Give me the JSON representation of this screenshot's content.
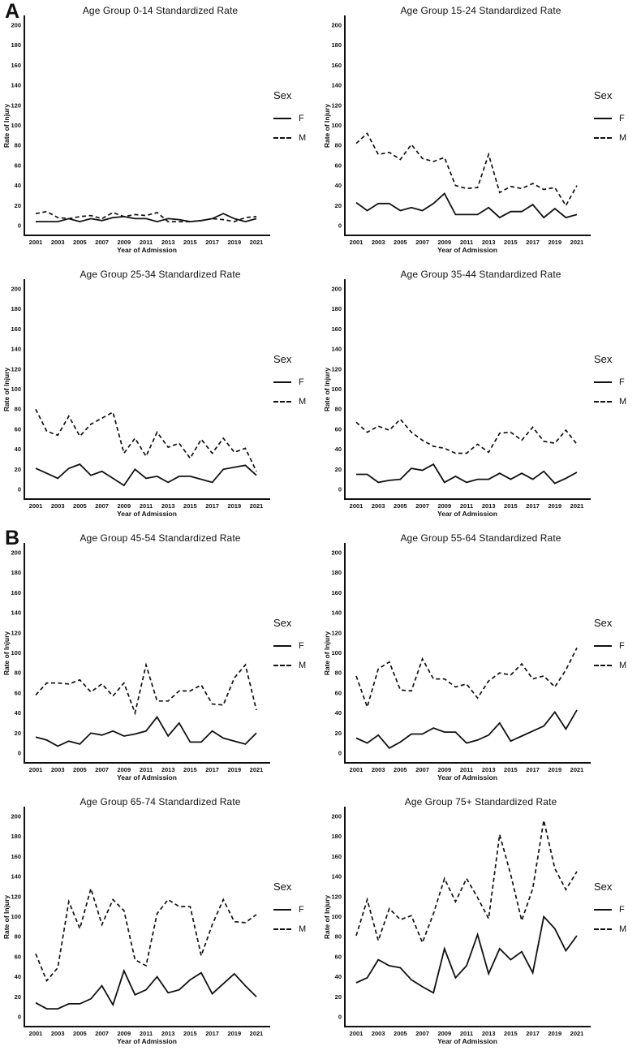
{
  "figure": {
    "background": "#ffffff",
    "line_color": "#111111",
    "sections": [
      {
        "label": "A"
      },
      {
        "label": "B"
      }
    ],
    "legend": {
      "title": "Sex",
      "position": "right",
      "entries": [
        {
          "label": "F",
          "line": "solid"
        },
        {
          "label": "M",
          "line": "dashed"
        }
      ]
    },
    "axis": {
      "y_label": "Rate of Injury",
      "x_label": "Year of Admission",
      "y_ticks": [
        0,
        20,
        40,
        60,
        80,
        100,
        120,
        140,
        160,
        180,
        200
      ],
      "x_tick_years": [
        2001,
        2003,
        2005,
        2007,
        2009,
        2011,
        2013,
        2015,
        2017,
        2019,
        2021
      ],
      "ylim": [
        0,
        200
      ],
      "grid": "off"
    }
  },
  "chart_data": [
    {
      "type": "line",
      "id": "age-0-14",
      "section": "A",
      "title": "Age Group 0-14 Standardized Rate",
      "xlabel": "Year of Admission",
      "ylabel": "Rate of Injury",
      "ylim": [
        0,
        200
      ],
      "x": [
        2001,
        2002,
        2003,
        2004,
        2005,
        2006,
        2007,
        2008,
        2009,
        2010,
        2011,
        2012,
        2013,
        2014,
        2015,
        2016,
        2017,
        2018,
        2019,
        2020,
        2021
      ],
      "series": [
        {
          "name": "F",
          "line": "solid",
          "values": [
            4,
            4,
            4,
            7,
            4,
            7,
            5,
            8,
            9,
            7,
            7,
            4,
            7,
            6,
            4,
            5,
            7,
            12,
            7,
            4,
            7
          ]
        },
        {
          "name": "M",
          "line": "dashed",
          "values": [
            12,
            14,
            8,
            7,
            9,
            10,
            7,
            13,
            9,
            11,
            10,
            13,
            4,
            4,
            4,
            5,
            7,
            6,
            4,
            8,
            9
          ]
        }
      ]
    },
    {
      "type": "line",
      "id": "age-15-24",
      "section": "A",
      "title": "Age Group 15-24 Standardized Rate",
      "xlabel": "Year of Admission",
      "ylabel": "Rate of Injury",
      "ylim": [
        0,
        200
      ],
      "x": [
        2001,
        2002,
        2003,
        2004,
        2005,
        2006,
        2007,
        2008,
        2009,
        2010,
        2011,
        2012,
        2013,
        2014,
        2015,
        2016,
        2017,
        2018,
        2019,
        2020,
        2021
      ],
      "series": [
        {
          "name": "F",
          "line": "solid",
          "values": [
            23,
            15,
            22,
            22,
            15,
            18,
            15,
            22,
            32,
            11,
            11,
            11,
            18,
            8,
            14,
            14,
            21,
            8,
            17,
            8,
            11
          ]
        },
        {
          "name": "M",
          "line": "dashed",
          "values": [
            82,
            92,
            71,
            73,
            66,
            81,
            67,
            64,
            68,
            40,
            37,
            38,
            71,
            33,
            39,
            37,
            42,
            36,
            38,
            20,
            40
          ]
        }
      ]
    },
    {
      "type": "line",
      "id": "age-25-34",
      "section": "A",
      "title": "Age Group 25-34 Standardized Rate",
      "xlabel": "Year of Admission",
      "ylabel": "Rate of Injury",
      "ylim": [
        0,
        200
      ],
      "x": [
        2001,
        2002,
        2003,
        2004,
        2005,
        2006,
        2007,
        2008,
        2009,
        2010,
        2011,
        2012,
        2013,
        2014,
        2015,
        2016,
        2017,
        2018,
        2019,
        2020,
        2021
      ],
      "series": [
        {
          "name": "F",
          "line": "solid",
          "values": [
            21,
            16,
            11,
            21,
            25,
            14,
            18,
            11,
            4,
            20,
            11,
            13,
            7,
            13,
            13,
            10,
            7,
            20,
            22,
            24,
            14
          ]
        },
        {
          "name": "M",
          "line": "dashed",
          "values": [
            80,
            58,
            54,
            73,
            53,
            65,
            71,
            77,
            36,
            51,
            33,
            57,
            42,
            46,
            31,
            50,
            36,
            51,
            37,
            41,
            18
          ]
        }
      ]
    },
    {
      "type": "line",
      "id": "age-35-44",
      "section": "A",
      "title": "Age Group 35-44 Standardized Rate",
      "xlabel": "Year of Admission",
      "ylabel": "Rate of Injury",
      "ylim": [
        0,
        200
      ],
      "x": [
        2001,
        2002,
        2003,
        2004,
        2005,
        2006,
        2007,
        2008,
        2009,
        2010,
        2011,
        2012,
        2013,
        2014,
        2015,
        2016,
        2017,
        2018,
        2019,
        2020,
        2021
      ],
      "series": [
        {
          "name": "F",
          "line": "solid",
          "values": [
            15,
            15,
            7,
            9,
            10,
            21,
            19,
            25,
            7,
            13,
            7,
            10,
            10,
            16,
            10,
            16,
            10,
            18,
            6,
            11,
            17
          ]
        },
        {
          "name": "M",
          "line": "dashed",
          "values": [
            67,
            57,
            63,
            59,
            70,
            57,
            49,
            43,
            41,
            36,
            36,
            45,
            37,
            56,
            57,
            49,
            62,
            48,
            46,
            59,
            45
          ]
        }
      ]
    },
    {
      "type": "line",
      "id": "age-45-54",
      "section": "B",
      "title": "Age Group 45-54 Standardized Rate",
      "xlabel": "Year of Admission",
      "ylabel": "Rate of Injury",
      "ylim": [
        0,
        200
      ],
      "x": [
        2001,
        2002,
        2003,
        2004,
        2005,
        2006,
        2007,
        2008,
        2009,
        2010,
        2011,
        2012,
        2013,
        2014,
        2015,
        2016,
        2017,
        2018,
        2019,
        2020,
        2021
      ],
      "series": [
        {
          "name": "F",
          "line": "solid",
          "values": [
            16,
            13,
            7,
            12,
            9,
            20,
            18,
            22,
            17,
            19,
            22,
            36,
            17,
            30,
            11,
            11,
            22,
            15,
            12,
            9,
            20
          ]
        },
        {
          "name": "M",
          "line": "dashed",
          "values": [
            58,
            70,
            70,
            69,
            73,
            61,
            69,
            57,
            70,
            40,
            88,
            52,
            52,
            62,
            62,
            68,
            49,
            48,
            75,
            88,
            43
          ]
        }
      ]
    },
    {
      "type": "line",
      "id": "age-55-64",
      "section": "B",
      "title": "Age Group 55-64 Standardized Rate",
      "xlabel": "Year of Admission",
      "ylabel": "Rate of Injury",
      "ylim": [
        0,
        200
      ],
      "x": [
        2001,
        2002,
        2003,
        2004,
        2005,
        2006,
        2007,
        2008,
        2009,
        2010,
        2011,
        2012,
        2013,
        2014,
        2015,
        2016,
        2017,
        2018,
        2019,
        2020,
        2021
      ],
      "series": [
        {
          "name": "F",
          "line": "solid",
          "values": [
            15,
            10,
            18,
            5,
            11,
            19,
            19,
            25,
            21,
            21,
            10,
            13,
            18,
            30,
            12,
            17,
            22,
            27,
            41,
            24,
            43
          ]
        },
        {
          "name": "M",
          "line": "dashed",
          "values": [
            77,
            46,
            84,
            91,
            63,
            62,
            94,
            74,
            74,
            66,
            69,
            55,
            72,
            80,
            78,
            89,
            74,
            77,
            66,
            83,
            105
          ]
        }
      ]
    },
    {
      "type": "line",
      "id": "age-65-74",
      "section": "B",
      "title": "Age Group 65-74 Standardized Rate",
      "xlabel": "Year of Admission",
      "ylabel": "Rate of Injury",
      "ylim": [
        0,
        200
      ],
      "x": [
        2001,
        2002,
        2003,
        2004,
        2005,
        2006,
        2007,
        2008,
        2009,
        2010,
        2011,
        2012,
        2013,
        2014,
        2015,
        2016,
        2017,
        2018,
        2019,
        2020,
        2021
      ],
      "series": [
        {
          "name": "F",
          "line": "solid",
          "values": [
            14,
            8,
            8,
            13,
            13,
            18,
            31,
            12,
            46,
            22,
            27,
            40,
            24,
            27,
            37,
            44,
            23,
            33,
            43,
            31,
            20
          ]
        },
        {
          "name": "M",
          "line": "dashed",
          "values": [
            63,
            36,
            49,
            115,
            88,
            128,
            92,
            117,
            106,
            57,
            51,
            103,
            117,
            110,
            110,
            61,
            92,
            117,
            95,
            94,
            102
          ]
        }
      ]
    },
    {
      "type": "line",
      "id": "age-75-plus",
      "section": "B",
      "title": "Age Group 75+ Standardized Rate",
      "xlabel": "Year of Admission",
      "ylabel": "Rate of Injury",
      "ylim": [
        0,
        200
      ],
      "x": [
        2001,
        2002,
        2003,
        2004,
        2005,
        2006,
        2007,
        2008,
        2009,
        2010,
        2011,
        2012,
        2013,
        2014,
        2015,
        2016,
        2017,
        2018,
        2019,
        2020,
        2021
      ],
      "series": [
        {
          "name": "F",
          "line": "solid",
          "values": [
            34,
            39,
            57,
            51,
            49,
            37,
            30,
            24,
            68,
            39,
            51,
            82,
            43,
            68,
            57,
            65,
            44,
            100,
            88,
            66,
            81
          ]
        },
        {
          "name": "M",
          "line": "dashed",
          "values": [
            81,
            117,
            76,
            108,
            97,
            101,
            74,
            103,
            138,
            115,
            138,
            119,
            98,
            182,
            142,
            96,
            128,
            196,
            148,
            127,
            145
          ]
        }
      ]
    }
  ]
}
